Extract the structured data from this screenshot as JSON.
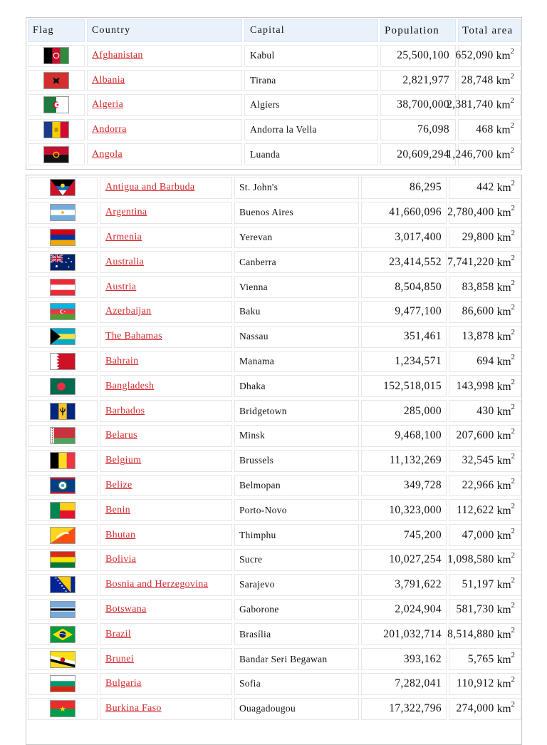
{
  "headers": {
    "flag": "Flag",
    "country": "Country",
    "capital": "Capital",
    "population": "Population",
    "area": "Total area"
  },
  "area_unit": "km",
  "area_unit_power": "2",
  "table1": [
    {
      "country": "Afghanistan",
      "capital": "Kabul",
      "population": "25,500,100",
      "area": "652,090",
      "flag": "flag-afghanistan-icon"
    },
    {
      "country": "Albania",
      "capital": "Tirana",
      "population": "2,821,977",
      "area": "28,748",
      "flag": "flag-albania-icon"
    },
    {
      "country": "Algeria",
      "capital": "Algiers",
      "population": "38,700,000",
      "area": "2,381,740",
      "flag": "flag-algeria-icon"
    },
    {
      "country": "Andorra",
      "capital": "Andorra la Vella",
      "population": "76,098",
      "area": "468",
      "flag": "flag-andorra-icon"
    },
    {
      "country": "Angola",
      "capital": "Luanda",
      "population": "20,609,294",
      "area": "1,246,700",
      "flag": "flag-angola-icon"
    }
  ],
  "table2": [
    {
      "country": "Antigua and Barbuda",
      "capital": "St. John's",
      "population": "86,295",
      "area": "442",
      "flag": "flag-antigua-and-barbuda-icon"
    },
    {
      "country": "Argentina",
      "capital": "Buenos Aires",
      "population": "41,660,096",
      "area": "2,780,400",
      "flag": "flag-argentina-icon"
    },
    {
      "country": "Armenia",
      "capital": "Yerevan",
      "population": "3,017,400",
      "area": "29,800",
      "flag": "flag-armenia-icon"
    },
    {
      "country": "Australia",
      "capital": "Canberra",
      "population": "23,414,552",
      "area": "7,741,220",
      "flag": "flag-australia-icon"
    },
    {
      "country": "Austria",
      "capital": "Vienna",
      "population": "8,504,850",
      "area": "83,858",
      "flag": "flag-austria-icon"
    },
    {
      "country": "Azerbaijan",
      "capital": "Baku",
      "population": "9,477,100",
      "area": "86,600",
      "flag": "flag-azerbaijan-icon"
    },
    {
      "country": "The Bahamas",
      "capital": "Nassau",
      "population": "351,461",
      "area": "13,878",
      "flag": "flag-bahamas-icon"
    },
    {
      "country": "Bahrain",
      "capital": "Manama",
      "population": "1,234,571",
      "area": "694",
      "flag": "flag-bahrain-icon"
    },
    {
      "country": "Bangladesh",
      "capital": "Dhaka",
      "population": "152,518,015",
      "area": "143,998",
      "flag": "flag-bangladesh-icon"
    },
    {
      "country": "Barbados",
      "capital": "Bridgetown",
      "population": "285,000",
      "area": "430",
      "flag": "flag-barbados-icon"
    },
    {
      "country": "Belarus",
      "capital": "Minsk",
      "population": "9,468,100",
      "area": "207,600",
      "flag": "flag-belarus-icon"
    },
    {
      "country": "Belgium",
      "capital": "Brussels",
      "population": "11,132,269",
      "area": "32,545",
      "flag": "flag-belgium-icon"
    },
    {
      "country": "Belize",
      "capital": "Belmopan",
      "population": "349,728",
      "area": "22,966",
      "flag": "flag-belize-icon"
    },
    {
      "country": "Benin",
      "capital": "Porto-Novo",
      "population": "10,323,000",
      "area": "112,622",
      "flag": "flag-benin-icon"
    },
    {
      "country": "Bhutan",
      "capital": "Thimphu",
      "population": "745,200",
      "area": "47,000",
      "flag": "flag-bhutan-icon"
    },
    {
      "country": "Bolivia",
      "capital": "Sucre",
      "population": "10,027,254",
      "area": "1,098,580",
      "flag": "flag-bolivia-icon"
    },
    {
      "country": "Bosnia and Herzegovina",
      "capital": "Sarajevo",
      "population": "3,791,622",
      "area": "51,197",
      "flag": "flag-bosnia-and-herzegovina-icon"
    },
    {
      "country": "Botswana",
      "capital": "Gaborone",
      "population": "2,024,904",
      "area": "581,730",
      "flag": "flag-botswana-icon"
    },
    {
      "country": "Brazil",
      "capital": "Brasília",
      "population": "201,032,714",
      "area": "8,514,880",
      "flag": "flag-brazil-icon"
    },
    {
      "country": "Brunei",
      "capital": "Bandar Seri Begawan",
      "population": "393,162",
      "area": "5,765",
      "flag": "flag-brunei-icon"
    },
    {
      "country": "Bulgaria",
      "capital": "Sofia",
      "population": "7,282,041",
      "area": "110,912",
      "flag": "flag-bulgaria-icon"
    },
    {
      "country": "Burkina Faso",
      "capital": "Ouagadougou",
      "population": "17,322,796",
      "area": "274,000",
      "flag": "flag-burkina-faso-icon"
    }
  ]
}
